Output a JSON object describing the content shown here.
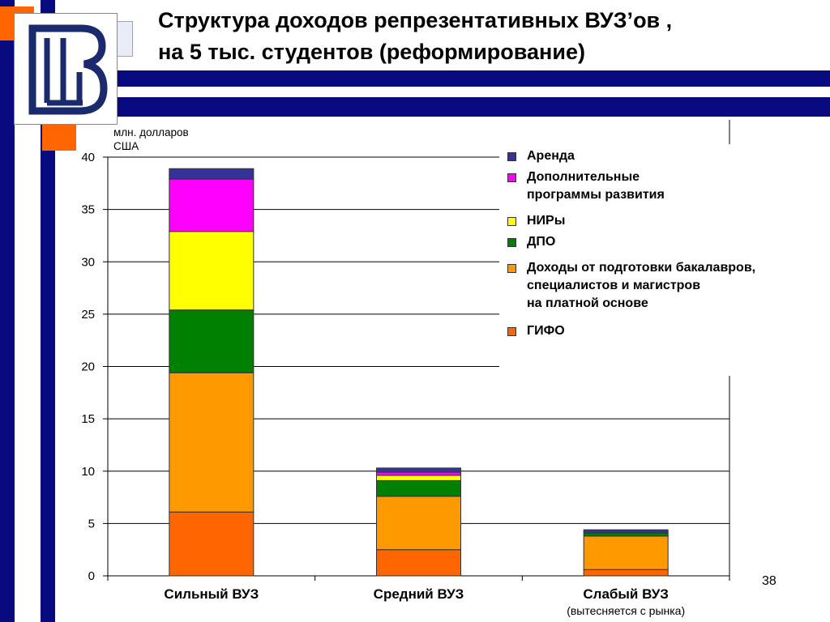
{
  "title": {
    "line1": "Структура доходов репрезентативных ВУЗ’ов ,",
    "line2": "на 5 тыс. студентов (реформирование)"
  },
  "unit_label": {
    "line1": "млн. долларов",
    "line2": "США"
  },
  "page_number": "38",
  "logo": {
    "icon": "university-monogram-logo"
  },
  "colors": {
    "navy": "#0a0a80",
    "orange": "#ff6600",
    "gridline": "#000000",
    "background": "#ffffff"
  },
  "chart_data": {
    "type": "bar",
    "stacked": true,
    "categories": [
      "Сильный  ВУЗ",
      "Средний  ВУЗ",
      "Слабый  ВУЗ"
    ],
    "category_notes": [
      "",
      "",
      "(вытесняется с рынка)"
    ],
    "ylim": [
      0,
      40
    ],
    "yticks": [
      0,
      5,
      10,
      15,
      20,
      25,
      30,
      35,
      40
    ],
    "grid": true,
    "legend_position": "top-right",
    "series": [
      {
        "name": "ГИФО",
        "color": "#ff6600",
        "values": [
          6.1,
          2.5,
          0.6
        ]
      },
      {
        "name": "Доходы от подготовки бакалавров, специалистов и магистров на платной основе",
        "color": "#ff9900",
        "values": [
          13.3,
          5.1,
          3.2
        ]
      },
      {
        "name": "ДПО",
        "color": "#008000",
        "values": [
          6.0,
          1.5,
          0.3
        ]
      },
      {
        "name": "НИРы",
        "color": "#ffff00",
        "values": [
          7.5,
          0.5,
          0.0
        ]
      },
      {
        "name": "Дополнительные программы развития",
        "color": "#ff00ff",
        "values": [
          5.0,
          0.3,
          0.0
        ]
      },
      {
        "name": "Аренда",
        "color": "#333399",
        "values": [
          1.0,
          0.4,
          0.3
        ]
      }
    ]
  },
  "legend": [
    {
      "lines": [
        "Аренда"
      ],
      "color": "#333399"
    },
    {
      "lines": [
        "Дополнительные",
        "программы развития"
      ],
      "color": "#ff00ff"
    },
    {
      "lines": [
        "НИРы"
      ],
      "color": "#ffff00"
    },
    {
      "lines": [
        "ДПО"
      ],
      "color": "#008000"
    },
    {
      "lines": [
        "Доходы от подготовки бакалавров,",
        "специалистов и магистров",
        "на платной основе"
      ],
      "color": "#ff9900"
    },
    {
      "lines": [
        "ГИФО"
      ],
      "color": "#ff6600"
    }
  ]
}
